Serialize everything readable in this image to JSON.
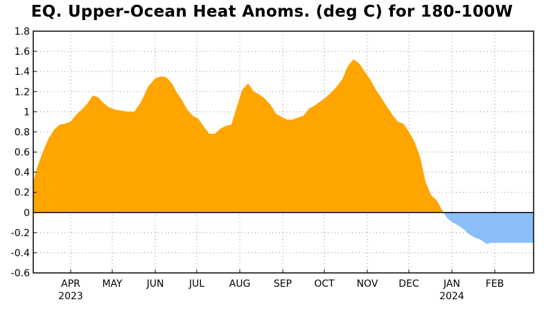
{
  "chart_data": {
    "type": "area",
    "title": "EQ. Upper-Ocean Heat Anoms. (deg C) for 180-100W",
    "xlabel": "",
    "ylabel": "",
    "ylim": [
      -0.6,
      1.8
    ],
    "yticks": [
      "1.8",
      "1.6",
      "1.4",
      "1.2",
      "1",
      "0.8",
      "0.6",
      "0.4",
      "0.2",
      "0",
      "-0.2",
      "-0.4",
      "-0.6"
    ],
    "grid": "dotted",
    "positive_color": "#FFA500",
    "negative_color": "#8CBEFA",
    "x_months": [
      {
        "label": "APR",
        "year": "2023"
      },
      {
        "label": "MAY",
        "year": ""
      },
      {
        "label": "JUN",
        "year": ""
      },
      {
        "label": "JUL",
        "year": ""
      },
      {
        "label": "AUG",
        "year": ""
      },
      {
        "label": "SEP",
        "year": ""
      },
      {
        "label": "OCT",
        "year": ""
      },
      {
        "label": "NOV",
        "year": ""
      },
      {
        "label": "DEC",
        "year": ""
      },
      {
        "label": "JAN",
        "year": "2024"
      },
      {
        "label": "FEB",
        "year": ""
      }
    ],
    "x_start": "2023-03-05",
    "x_end": "2024-02-29",
    "series": [
      {
        "x": [
          "2023-03-05",
          "2023-03-08",
          "2023-03-12",
          "2023-03-16",
          "2023-03-20",
          "2023-03-24",
          "2023-03-28",
          "2023-04-01",
          "2023-04-05",
          "2023-04-09",
          "2023-04-13",
          "2023-04-17",
          "2023-04-21",
          "2023-04-25",
          "2023-04-29",
          "2023-05-03",
          "2023-05-07",
          "2023-05-12",
          "2023-05-17",
          "2023-05-22",
          "2023-05-27",
          "2023-06-01",
          "2023-06-05",
          "2023-06-09",
          "2023-06-13",
          "2023-06-16",
          "2023-06-20",
          "2023-06-24",
          "2023-06-28",
          "2023-07-02",
          "2023-07-06",
          "2023-07-10",
          "2023-07-14",
          "2023-07-18",
          "2023-07-22",
          "2023-07-26",
          "2023-07-30",
          "2023-08-03",
          "2023-08-07",
          "2023-08-11",
          "2023-08-15",
          "2023-08-19",
          "2023-08-23",
          "2023-08-27",
          "2023-08-31",
          "2023-09-04",
          "2023-09-08",
          "2023-09-12",
          "2023-09-16",
          "2023-09-20",
          "2023-09-24",
          "2023-09-28",
          "2023-10-02",
          "2023-10-06",
          "2023-10-10",
          "2023-10-14",
          "2023-10-18",
          "2023-10-22",
          "2023-10-26",
          "2023-10-30",
          "2023-11-03",
          "2023-11-07",
          "2023-11-11",
          "2023-11-15",
          "2023-11-19",
          "2023-11-23",
          "2023-11-27",
          "2023-12-01",
          "2023-12-05",
          "2023-12-09",
          "2023-12-13",
          "2023-12-17",
          "2023-12-21",
          "2023-12-25",
          "2023-12-29",
          "2024-01-02",
          "2024-01-06",
          "2024-01-10",
          "2024-01-14",
          "2024-01-18",
          "2024-01-22",
          "2024-01-26",
          "2024-01-30",
          "2024-02-03",
          "2024-02-07",
          "2024-02-11",
          "2024-02-15",
          "2024-02-19",
          "2024-02-23",
          "2024-02-27",
          "2024-02-29"
        ],
        "values": [
          0.3,
          0.45,
          0.6,
          0.73,
          0.82,
          0.87,
          0.88,
          0.9,
          0.97,
          1.02,
          1.08,
          1.16,
          1.14,
          1.08,
          1.04,
          1.02,
          1.01,
          1.0,
          1.0,
          1.1,
          1.25,
          1.33,
          1.35,
          1.34,
          1.28,
          1.2,
          1.12,
          1.02,
          0.96,
          0.93,
          0.85,
          0.78,
          0.78,
          0.83,
          0.86,
          0.87,
          1.05,
          1.22,
          1.28,
          1.2,
          1.17,
          1.13,
          1.07,
          0.98,
          0.95,
          0.92,
          0.92,
          0.94,
          0.96,
          1.03,
          1.06,
          1.1,
          1.14,
          1.19,
          1.25,
          1.32,
          1.45,
          1.52,
          1.48,
          1.4,
          1.32,
          1.22,
          1.14,
          1.05,
          0.97,
          0.9,
          0.88,
          0.8,
          0.7,
          0.55,
          0.3,
          0.17,
          0.12,
          0.02,
          -0.06,
          -0.1,
          -0.13,
          -0.17,
          -0.22,
          -0.25,
          -0.27,
          -0.31,
          -0.3,
          -0.3,
          -0.3,
          -0.3,
          -0.3,
          -0.3,
          -0.3,
          -0.3,
          -0.3
        ]
      }
    ]
  }
}
